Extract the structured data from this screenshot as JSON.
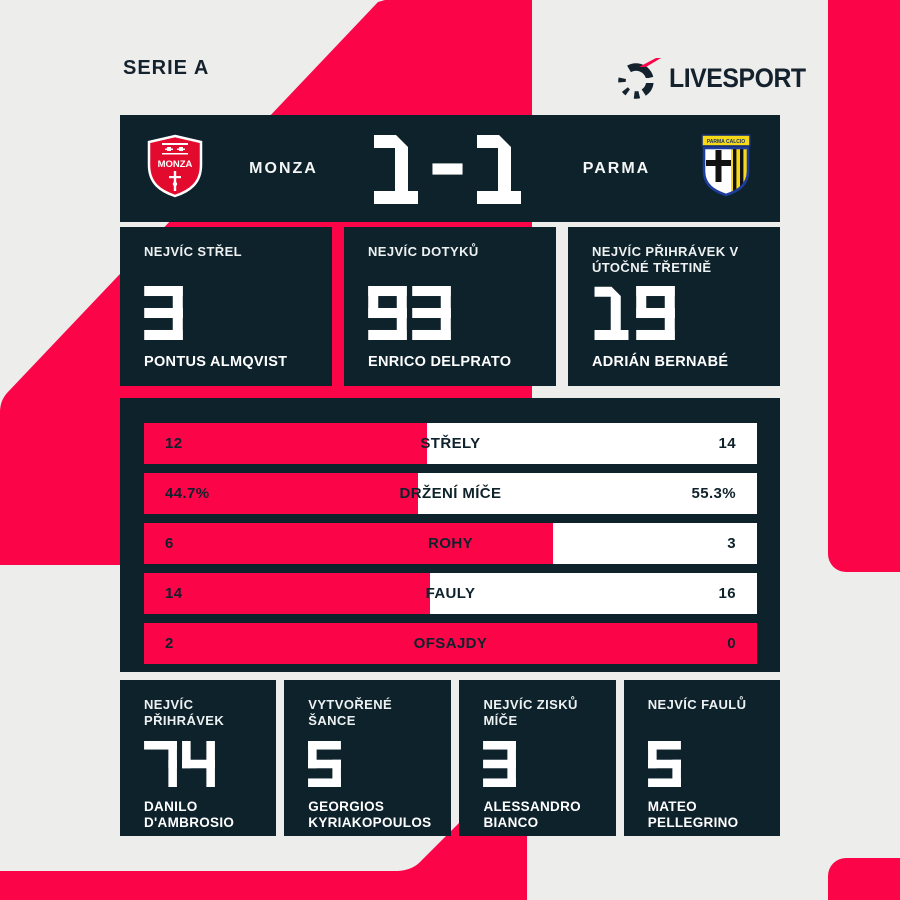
{
  "page": {
    "league": "SERIE A",
    "brand": "LIVESPORT"
  },
  "colors": {
    "pink": "#fb0448",
    "dark": "#0e222c",
    "background": "#ededec",
    "bar_white": "#ffffff"
  },
  "scoreboard": {
    "home_team": "MONZA",
    "away_team": "PARMA",
    "score": "1-1",
    "home_logo": "monza-crest",
    "away_logo": "parma-crest",
    "parma_banner": "PARMA CALCIO",
    "monza_crest_text": "MONZA"
  },
  "top_stats": [
    {
      "label": "NEJVÍC STŘEL",
      "value": "3",
      "player": "PONTUS ALMQVIST"
    },
    {
      "label": "NEJVÍC DOTYKŮ",
      "value": "93",
      "player": "ENRICO DELPRATO"
    },
    {
      "label": "NEJVÍC PŘIHRÁVEK V ÚTOČNÉ TŘETINĚ",
      "value": "19",
      "player": "ADRIÁN BERNABÉ"
    }
  ],
  "bar_stats": [
    {
      "label": "STŘELY",
      "home": "12",
      "away": "14",
      "home_pct": 46.2
    },
    {
      "label": "DRŽENÍ MÍČE",
      "home": "44.7%",
      "away": "55.3%",
      "home_pct": 44.7
    },
    {
      "label": "ROHY",
      "home": "6",
      "away": "3",
      "home_pct": 66.7
    },
    {
      "label": "FAULY",
      "home": "14",
      "away": "16",
      "home_pct": 46.7
    },
    {
      "label": "OFSAJDY",
      "home": "2",
      "away": "0",
      "home_pct": 100
    }
  ],
  "bottom_stats": [
    {
      "label": "NEJVÍC PŘIHRÁVEK",
      "value": "74",
      "player": "DANILO D'AMBROSIO"
    },
    {
      "label": "VYTVOŘENÉ ŠANCE",
      "value": "5",
      "player": "GEORGIOS KYRIAKOPOULOS"
    },
    {
      "label": "NEJVÍC ZISKŮ MÍČE",
      "value": "3",
      "player": "ALESSANDRO BIANCO"
    },
    {
      "label": "NEJVÍC FAULŮ",
      "value": "5",
      "player": "MATEO PELLEGRINO"
    }
  ],
  "chart_data": {
    "type": "bar",
    "orientation": "horizontal-paired",
    "title": "MONZA 1-1 PARMA",
    "categories": [
      "STŘELY",
      "DRŽENÍ MÍČE",
      "ROHY",
      "FAULY",
      "OFSAJDY"
    ],
    "series": [
      {
        "name": "MONZA",
        "values": [
          12,
          44.7,
          6,
          14,
          2
        ]
      },
      {
        "name": "PARMA",
        "values": [
          14,
          55.3,
          3,
          16,
          0
        ]
      }
    ],
    "legend_position": "none",
    "grid": false
  }
}
